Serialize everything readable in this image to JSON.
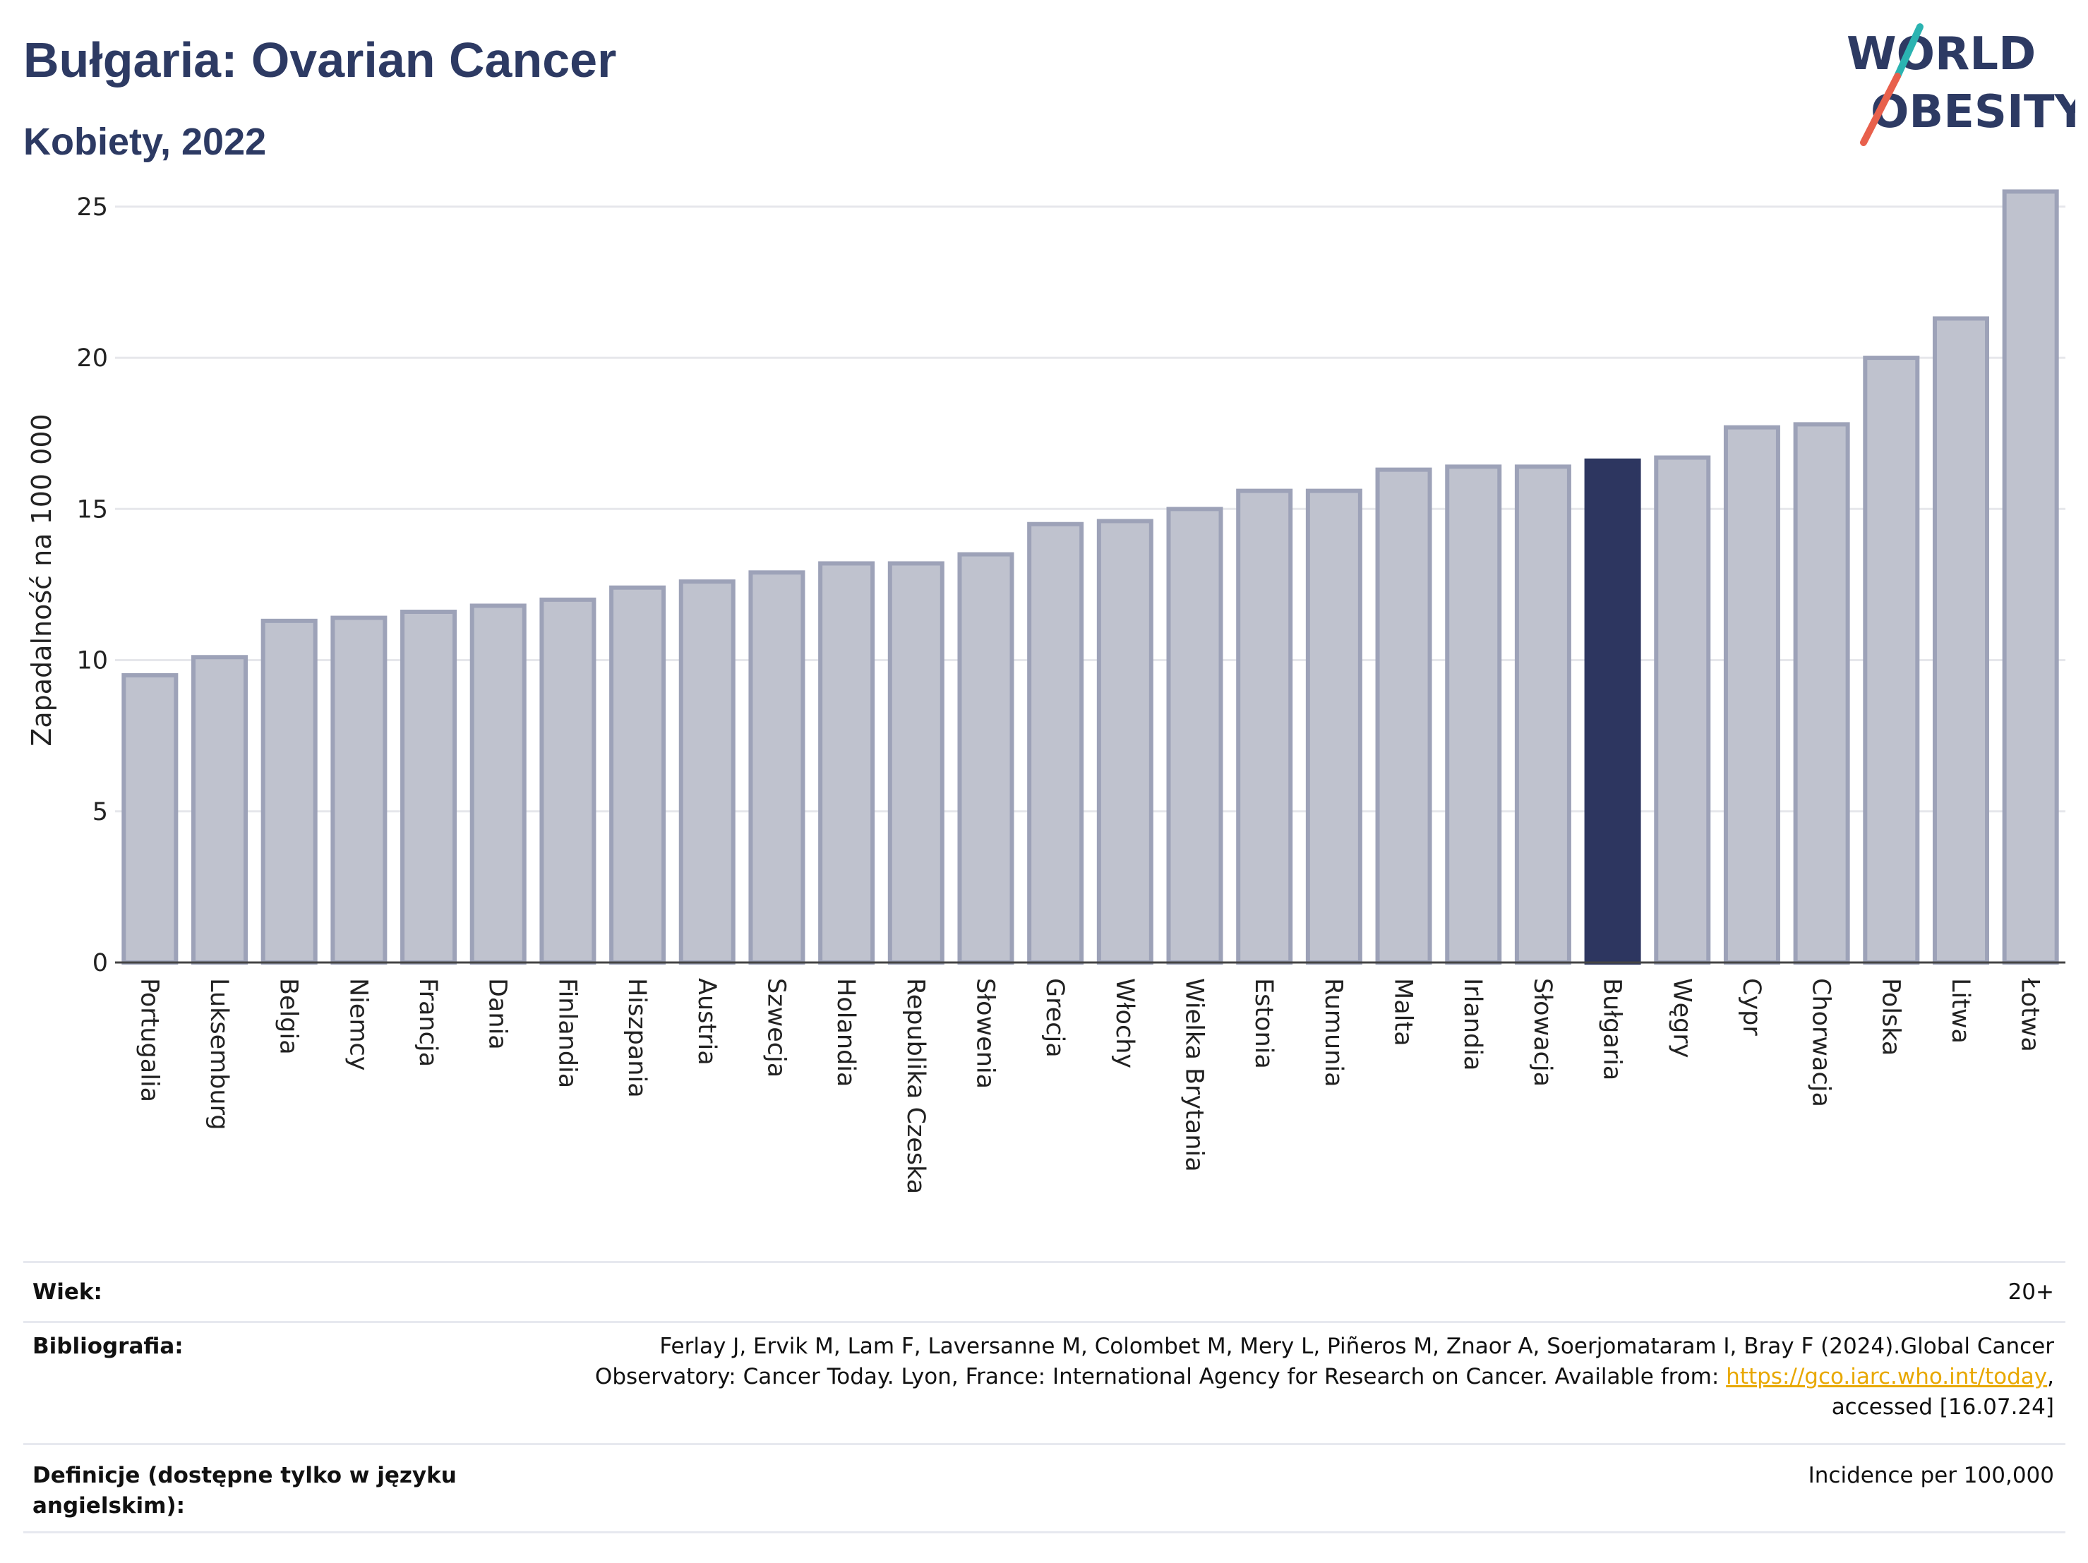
{
  "header": {
    "title": "Bułgaria: Ovarian Cancer",
    "subtitle": "Kobiety, 2022"
  },
  "logo": {
    "line1": "WORLD",
    "line2": "OBESITY",
    "colors": {
      "text": "#2d3a63",
      "slash_top": "#2bb3b1",
      "slash_bottom": "#e8604c"
    }
  },
  "chart_data": {
    "type": "bar",
    "ylabel": "Zapadalność na 100 000",
    "xlabel": "",
    "ylim": [
      0,
      26
    ],
    "yticks": [
      0,
      5,
      10,
      15,
      20,
      25
    ],
    "grid": true,
    "highlight": "Bułgaria",
    "colors": {
      "bar": "#bfc2ce",
      "bar_border": "#9da2b8",
      "highlight": "#2d3660",
      "grid": "#e6e7eb",
      "axis": "#444444"
    },
    "categories": [
      "Portugalia",
      "Luksemburg",
      "Belgia",
      "Niemcy",
      "Francja",
      "Dania",
      "Finlandia",
      "Hiszpania",
      "Austria",
      "Szwecja",
      "Holandia",
      "Republika Czeska",
      "Słowenia",
      "Grecja",
      "Włochy",
      "Wielka Brytania",
      "Estonia",
      "Rumunia",
      "Malta",
      "Irlandia",
      "Słowacja",
      "Bułgaria",
      "Węgry",
      "Cypr",
      "Chorwacja",
      "Polska",
      "Litwa",
      "Łotwa"
    ],
    "values": [
      9.5,
      10.1,
      11.3,
      11.4,
      11.6,
      11.8,
      12.0,
      12.4,
      12.6,
      12.9,
      13.2,
      13.2,
      13.5,
      14.5,
      14.6,
      15.0,
      15.6,
      15.6,
      16.3,
      16.4,
      16.4,
      16.6,
      16.7,
      17.7,
      17.8,
      20.0,
      21.3,
      25.5
    ]
  },
  "info": {
    "age_label": "Wiek:",
    "age_value": "20+",
    "bib_label": "Bibliografia:",
    "bib_line1": "Ferlay J, Ervik M, Lam F, Laversanne M, Colombet M, Mery L, Piñeros M, Znaor A, Soerjomataram I, Bray F (2024).Global Cancer",
    "bib_line2_prefix": "Observatory: Cancer Today. Lyon, France: International Agency for Research on Cancer. Available from: ",
    "bib_link": "https://gco.iarc.who.int/today",
    "bib_line2_suffix": ",",
    "bib_line3": "accessed [16.07.24]",
    "def_label_line1": "Definicje (dostępne tylko w języku",
    "def_label_line2": "angielskim):",
    "def_value": "Incidence per 100,000"
  }
}
